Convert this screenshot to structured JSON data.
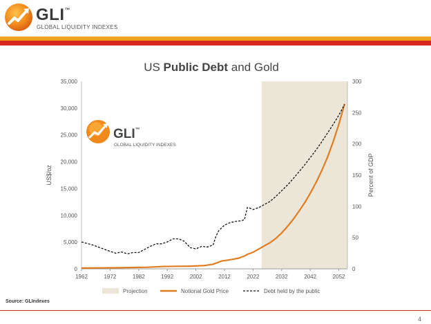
{
  "header": {
    "logo_text": "GLI",
    "logo_tm": "™",
    "logo_sub": "GLOBAL LIQUIDITY INDEXES",
    "colors": {
      "orange": "#f3a21d",
      "red": "#d7261e"
    }
  },
  "watermark": {
    "logo_text": "GLI",
    "logo_tm": "™",
    "logo_sub": "GLOBAL LIQUIDITY INDEXES"
  },
  "footer": {
    "source": "Source: GLIndexes",
    "page_number": "4"
  },
  "chart_data": {
    "type": "line",
    "title_prefix": "US ",
    "title_bold": "Public Debt",
    "title_suffix": " and Gold",
    "xlabel": "",
    "ylabel": "US$/oz",
    "y2label": "Percent of GDP",
    "xlim": [
      1962,
      2055
    ],
    "ylim": [
      0,
      35000
    ],
    "y2lim": [
      0,
      300
    ],
    "x_ticks": [
      "1962",
      "1972",
      "1982",
      "1992",
      "2002",
      "2012",
      "2022",
      "2032",
      "2042",
      "2052"
    ],
    "y_ticks": [
      "0",
      "5,000",
      "10,000",
      "15,000",
      "20,000",
      "25,000",
      "30,000",
      "35,000"
    ],
    "y2_ticks": [
      "0",
      "50",
      "100",
      "150",
      "200",
      "250",
      "300"
    ],
    "projection_range": [
      2025,
      2055
    ],
    "series": [
      {
        "name": "Notional Gold Price",
        "axis": "left",
        "style": "solid",
        "color": "#e07b1f",
        "x": [
          1962,
          1970,
          1975,
          1980,
          1985,
          1990,
          1995,
          2000,
          2005,
          2008,
          2011,
          2014,
          2017,
          2019,
          2020,
          2022,
          2024,
          2026,
          2028,
          2030,
          2032,
          2034,
          2036,
          2038,
          2040,
          2042,
          2044,
          2046,
          2048,
          2050,
          2052,
          2054
        ],
        "y": [
          150,
          180,
          200,
          260,
          300,
          420,
          480,
          500,
          620,
          860,
          1450,
          1700,
          2000,
          2400,
          2700,
          3100,
          3700,
          4300,
          4900,
          5700,
          6700,
          7900,
          9200,
          10700,
          12300,
          14100,
          16100,
          18300,
          20800,
          23700,
          27000,
          30800
        ]
      },
      {
        "name": "Debt held by the public",
        "axis": "right",
        "style": "dashed",
        "color": "#111111",
        "x": [
          1962,
          1966,
          1969,
          1972,
          1974,
          1976,
          1978,
          1980,
          1982,
          1984,
          1986,
          1988,
          1990,
          1992,
          1994,
          1996,
          1998,
          2000,
          2002,
          2004,
          2006,
          2008,
          2009,
          2010,
          2012,
          2014,
          2016,
          2018,
          2019,
          2020,
          2021,
          2022,
          2024,
          2026,
          2028,
          2030,
          2032,
          2034,
          2036,
          2038,
          2040,
          2042,
          2044,
          2046,
          2048,
          2050,
          2052,
          2054
        ],
        "y": [
          43,
          38,
          33,
          28,
          25,
          27,
          24,
          26,
          26,
          31,
          36,
          40,
          40,
          43,
          48,
          48,
          44,
          34,
          32,
          36,
          35,
          38,
          52,
          61,
          70,
          74,
          76,
          77,
          79,
          98,
          97,
          95,
          98,
          103,
          108,
          116,
          125,
          134,
          144,
          155,
          166,
          178,
          190,
          203,
          217,
          231,
          246,
          263
        ]
      }
    ],
    "legend": [
      {
        "label": "Projection",
        "kind": "area",
        "color": "#ebe6d8"
      },
      {
        "label": "Notional Gold Price",
        "kind": "solid",
        "color": "#e07b1f"
      },
      {
        "label": "Debt held by the public",
        "kind": "dashed",
        "color": "#111111"
      }
    ],
    "colors": {
      "projection_shade": "#ebe6d8",
      "axis": "#9a9a9a"
    }
  }
}
